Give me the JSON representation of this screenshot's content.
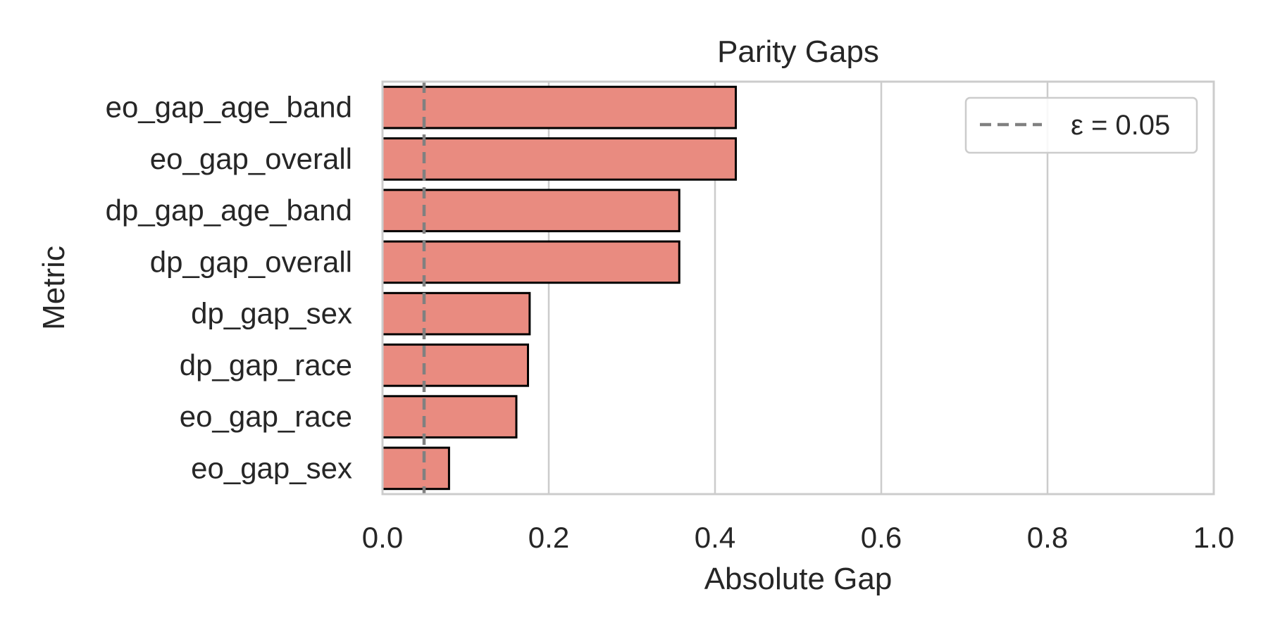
{
  "chart_data": {
    "type": "bar",
    "orientation": "horizontal",
    "title": "Parity Gaps",
    "xlabel": "Absolute Gap",
    "ylabel": "Metric",
    "xlim": [
      0.0,
      1.0
    ],
    "xticks": [
      0.0,
      0.2,
      0.4,
      0.6,
      0.8,
      1.0
    ],
    "xtick_labels": [
      "0.0",
      "0.2",
      "0.4",
      "0.6",
      "0.8",
      "1.0"
    ],
    "grid": "vertical",
    "categories": [
      "eo_gap_age_band",
      "eo_gap_overall",
      "dp_gap_age_band",
      "dp_gap_overall",
      "dp_gap_sex",
      "dp_gap_race",
      "eo_gap_race",
      "eo_gap_sex"
    ],
    "values": [
      0.425,
      0.425,
      0.357,
      0.357,
      0.177,
      0.175,
      0.161,
      0.08
    ],
    "bar_color": "#e98b80",
    "bar_edge_color": "#000000",
    "threshold": {
      "value": 0.05,
      "color": "#808080",
      "style": "dashed",
      "label": "ε = 0.05"
    },
    "legend": {
      "placement": "top-right"
    }
  }
}
